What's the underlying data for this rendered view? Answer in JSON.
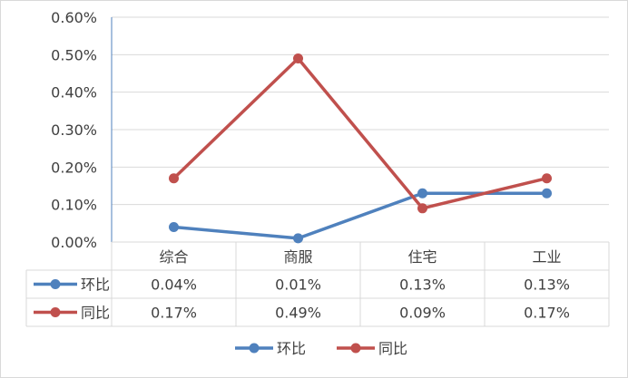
{
  "chart_data": {
    "type": "line",
    "categories": [
      "综合",
      "商服",
      "住宅",
      "工业"
    ],
    "series": [
      {
        "name": "环比",
        "values": [
          0.04,
          0.01,
          0.13,
          0.13
        ],
        "labels": [
          "0.04%",
          "0.01%",
          "0.13%",
          "0.13%"
        ],
        "color": "#4f81bd"
      },
      {
        "name": "同比",
        "values": [
          0.17,
          0.49,
          0.09,
          0.17
        ],
        "labels": [
          "0.17%",
          "0.49%",
          "0.09%",
          "0.17%"
        ],
        "color": "#c0504d"
      }
    ],
    "yticks": [
      "0.00%",
      "0.10%",
      "0.20%",
      "0.30%",
      "0.40%",
      "0.50%",
      "0.60%"
    ],
    "ylim": [
      0,
      0.6
    ],
    "grid": true,
    "data_table": true,
    "legend": "bottom"
  }
}
